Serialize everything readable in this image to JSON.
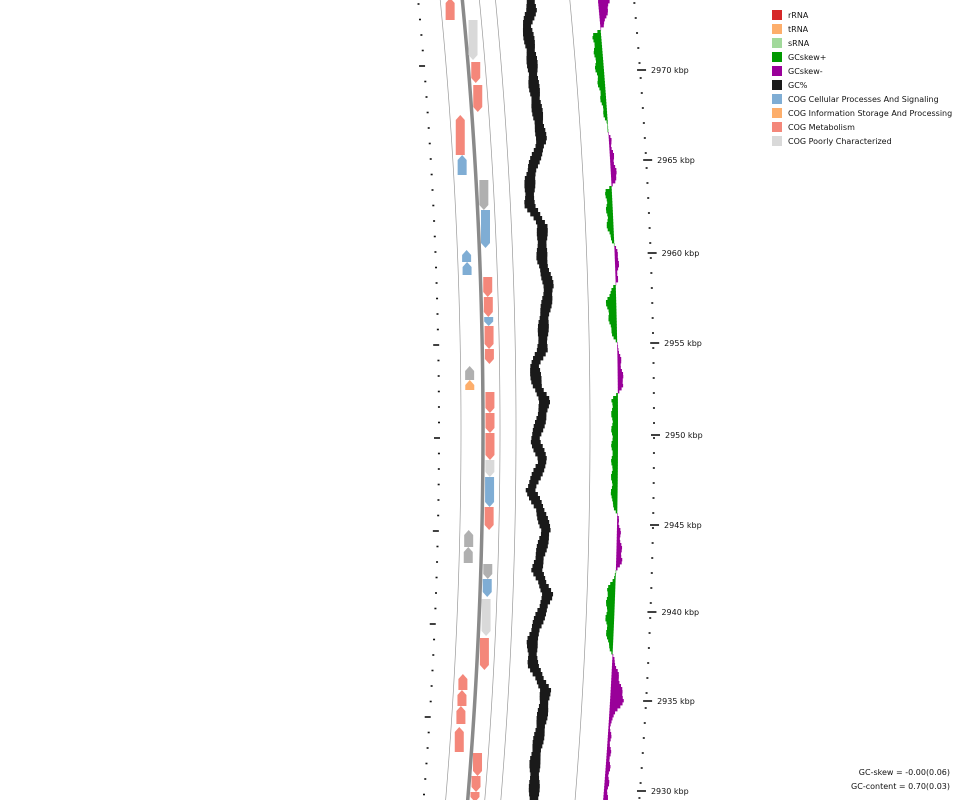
{
  "legend": [
    {
      "label": "rRNA",
      "color": "#d62728"
    },
    {
      "label": "tRNA",
      "color": "#fdae6b"
    },
    {
      "label": "sRNA",
      "color": "#a1d99b"
    },
    {
      "label": "GCskew+",
      "color": "#009900"
    },
    {
      "label": "GCskew-",
      "color": "#990099"
    },
    {
      "label": "GC%",
      "color": "#1a1a1a"
    },
    {
      "label": "COG Cellular Processes And Signaling",
      "color": "#7fadd4"
    },
    {
      "label": "COG Information Storage And Processing",
      "color": "#fdae6b"
    },
    {
      "label": "COG Metabolism",
      "color": "#f4877a"
    },
    {
      "label": "COG Poorly Characterized",
      "color": "#d9d9d9"
    }
  ],
  "stats": {
    "gc_skew": "GC-skew = -0.00(0.06)",
    "gc_content": "GC-content = 0.70(0.03)"
  },
  "position_labels": [
    "2970 kbp",
    "2965 kbp",
    "2960 kbp",
    "2955 kbp",
    "2950 kbp",
    "2945 kbp",
    "2940 kbp",
    "2935 kbp",
    "2930 kbp"
  ]
}
